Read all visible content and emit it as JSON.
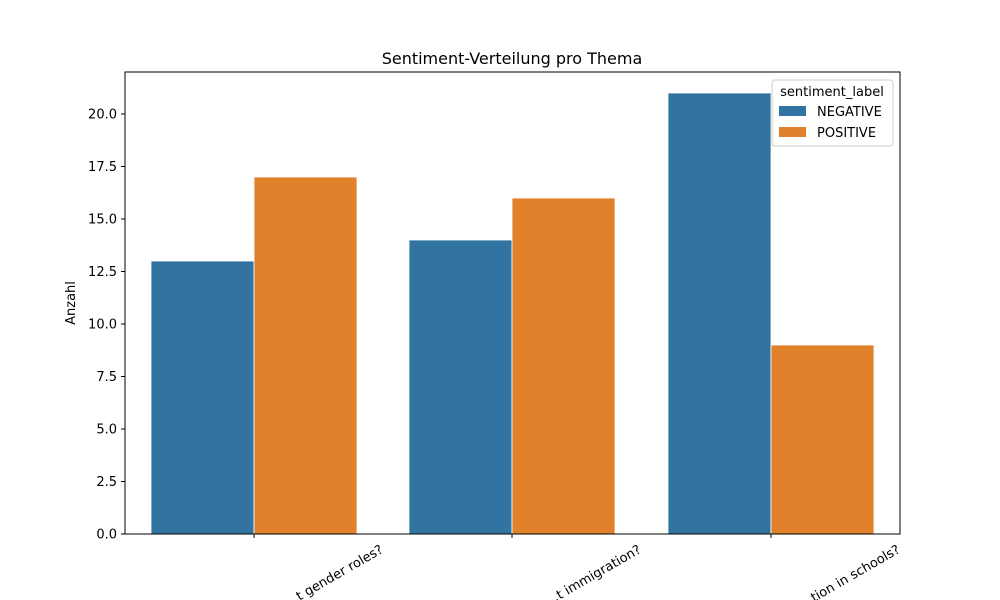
{
  "chart_data": {
    "type": "bar",
    "title": "Sentiment-Verteilung pro Thema",
    "xlabel": "",
    "ylabel": "Anzahl",
    "categories": [
      "…t gender roles?",
      "…t immigration?",
      "…tion in schools?"
    ],
    "series": [
      {
        "name": "NEGATIVE",
        "values": [
          13,
          14,
          21
        ],
        "color": "#3274a1"
      },
      {
        "name": "POSITIVE",
        "values": [
          17,
          16,
          9
        ],
        "color": "#e1812c"
      }
    ],
    "ylim": [
      0,
      22
    ],
    "yticks": [
      "0.0",
      "2.5",
      "5.0",
      "7.5",
      "10.0",
      "12.5",
      "15.0",
      "17.5",
      "20.0"
    ],
    "ytick_values": [
      0,
      2.5,
      5,
      7.5,
      10,
      12.5,
      15,
      17.5,
      20
    ],
    "grid": false,
    "legend": {
      "title": "sentiment_label",
      "position": "top-right"
    }
  }
}
